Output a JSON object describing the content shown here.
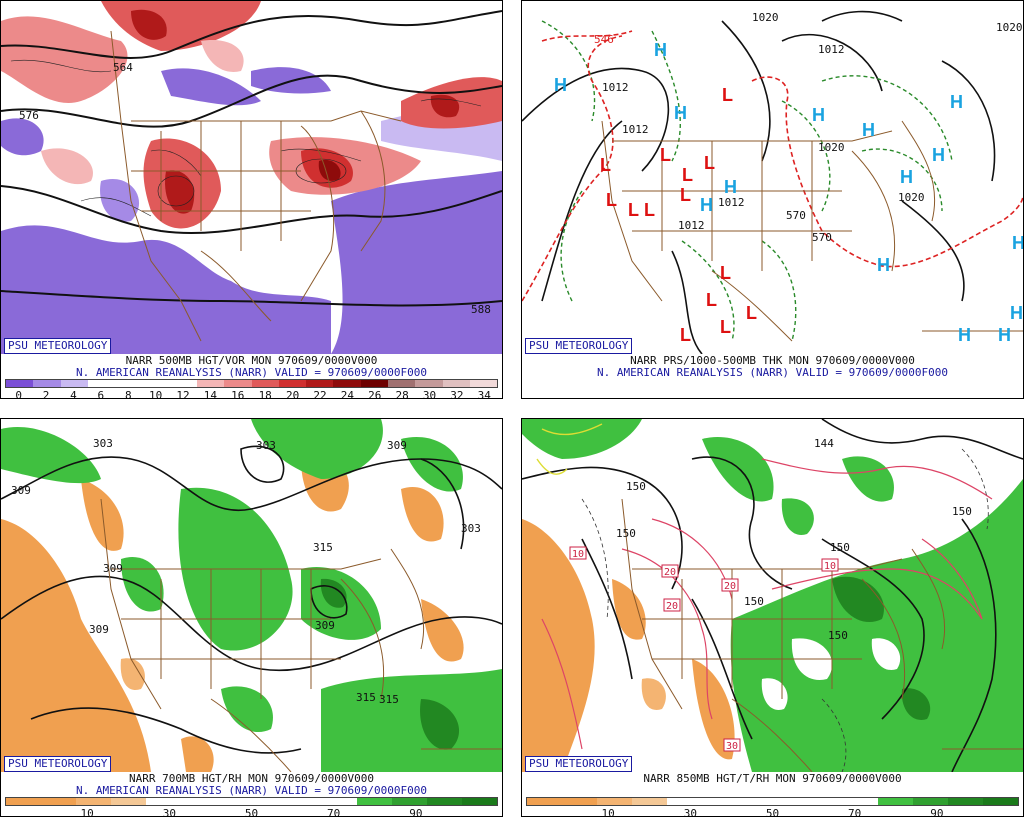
{
  "panels": {
    "p1": {
      "badge": "PSU METEOROLOGY",
      "caption1": "NARR 500MB HGT/VOR MON 970609/0000V000",
      "caption2": "N. AMERICAN REANALYSIS (NARR) VALID = 970609/0000F000",
      "contour_labels": [
        "564",
        "576",
        "588"
      ],
      "colorbar": {
        "colors": [
          "#7b4fd6",
          "#a58ae6",
          "#c9baf2",
          "#ffffff",
          "#ffffff",
          "#ffffff",
          "#ffffff",
          "#f4b6b6",
          "#ec8a8a",
          "#e05a5a",
          "#d03030",
          "#b01a1a",
          "#8e0b0b",
          "#6e0000",
          "#a07070",
          "#c49a9a",
          "#e0c0c0",
          "#f2dada"
        ],
        "ticks": [
          "0",
          "2",
          "4",
          "6",
          "8",
          "10",
          "12",
          "14",
          "16",
          "18",
          "20",
          "22",
          "24",
          "26",
          "28",
          "30",
          "32",
          "34"
        ]
      }
    },
    "p2": {
      "badge": "PSU METEOROLOGY",
      "caption1": "NARR PRS/1000-500MB THK MON 970609/0000V000",
      "caption2": "N. AMERICAN REANALYSIS (NARR) VALID = 970609/0000F000",
      "high_label": "H",
      "low_label": "L",
      "contour_labels": [
        "1012",
        "1012",
        "1012",
        "1012",
        "1012",
        "1020",
        "1020",
        "1020",
        "570",
        "570",
        "546",
        "1020"
      ]
    },
    "p3": {
      "badge": "PSU METEOROLOGY",
      "caption1": "NARR 700MB HGT/RH MON 970609/0000V000",
      "caption2": "N. AMERICAN REANALYSIS (NARR) VALID = 970609/0000F000",
      "contour_labels": [
        "303",
        "303",
        "309",
        "309",
        "309",
        "309",
        "315",
        "309",
        "303",
        "315",
        "315"
      ],
      "colorbar": {
        "colors": [
          "#f0a050",
          "#f0a050",
          "#f4b472",
          "#f4c896",
          "#ffffff",
          "#ffffff",
          "#ffffff",
          "#ffffff",
          "#ffffff",
          "#ffffff",
          "#40c040",
          "#30a030",
          "#228822",
          "#1a7a1a"
        ],
        "ticks": [
          "10",
          "30",
          "50",
          "70",
          "90"
        ]
      }
    },
    "p4": {
      "badge": "PSU METEOROLOGY",
      "caption1": "NARR 850MB HGT/T/RH MON 970609/0000V000",
      "contour_labels": [
        "144",
        "150",
        "150",
        "150",
        "150",
        "150",
        "150",
        "10",
        "10",
        "20",
        "20",
        "20",
        "30"
      ],
      "colorbar": {
        "colors": [
          "#f0a050",
          "#f0a050",
          "#f4b472",
          "#f4c896",
          "#ffffff",
          "#ffffff",
          "#ffffff",
          "#ffffff",
          "#ffffff",
          "#ffffff",
          "#40c040",
          "#30a030",
          "#228822",
          "#1a7a1a"
        ],
        "ticks": [
          "10",
          "30",
          "50",
          "70",
          "90"
        ]
      }
    }
  }
}
